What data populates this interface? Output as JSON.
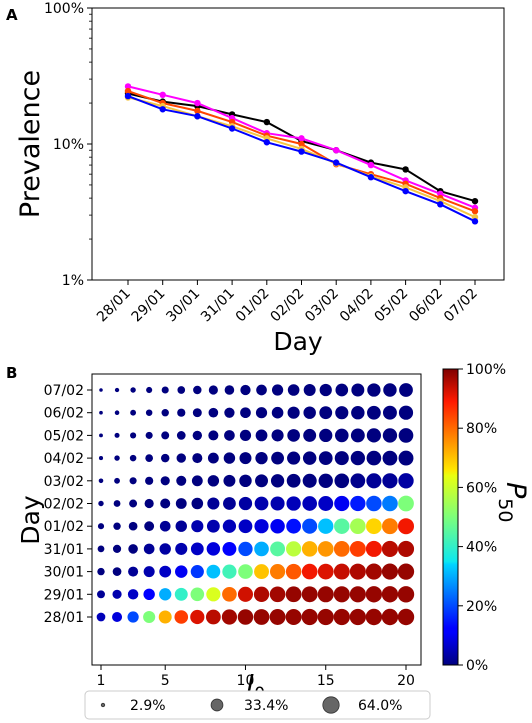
{
  "chart_data": [
    {
      "panel": "A",
      "type": "line",
      "xlabel": "Day",
      "ylabel": "Prevalence",
      "yscale": "log",
      "ylim": [
        1,
        100
      ],
      "yticks": [
        "1%",
        "10%",
        "100%"
      ],
      "categories": [
        "28/01",
        "29/01",
        "30/01",
        "31/01",
        "01/02",
        "02/02",
        "03/02",
        "04/02",
        "05/02",
        "06/02",
        "07/02"
      ],
      "series": [
        {
          "color": "#000000",
          "values": [
            23.5,
            20.5,
            19.0,
            16.5,
            14.5,
            10.5,
            9.0,
            7.3,
            6.5,
            4.5,
            3.8
          ]
        },
        {
          "color": "#ff00ff",
          "values": [
            26.5,
            23.0,
            20.0,
            15.5,
            12.0,
            11.0,
            9.0,
            7.0,
            5.4,
            4.3,
            3.4
          ]
        },
        {
          "color": "#ff4500",
          "values": [
            24.5,
            20.0,
            17.5,
            14.5,
            11.5,
            10.0,
            7.1,
            6.0,
            5.1,
            4.0,
            3.2
          ]
        },
        {
          "color": "#f4c542",
          "values": [
            22.0,
            19.0,
            16.0,
            13.5,
            11.0,
            9.2,
            7.2,
            5.8,
            4.8,
            3.8,
            2.9
          ]
        },
        {
          "color": "#0000ff",
          "values": [
            22.5,
            18.0,
            16.0,
            13.0,
            10.3,
            8.8,
            7.3,
            5.7,
            4.5,
            3.6,
            2.7
          ]
        }
      ]
    },
    {
      "panel": "B",
      "type": "scatter",
      "xlabel": "I",
      "xlabel_subscript": "0",
      "ylabel": "Day",
      "x_ticks": [
        "1",
        "5",
        "10",
        "15",
        "20"
      ],
      "x": [
        1,
        2,
        3,
        4,
        5,
        6,
        7,
        8,
        9,
        10,
        11,
        12,
        13,
        14,
        15,
        16,
        17,
        18,
        19,
        20
      ],
      "days": [
        "28/01",
        "29/01",
        "30/01",
        "31/01",
        "01/02",
        "02/02",
        "03/02",
        "04/02",
        "05/02",
        "06/02",
        "07/02"
      ],
      "colorbar": {
        "label": "P",
        "label_subscript": "50",
        "ticks": [
          "0%",
          "20%",
          "40%",
          "60%",
          "80%",
          "100%"
        ]
      },
      "size_legend": [
        {
          "label": "2.9%",
          "value": 2.9
        },
        {
          "label": "33.4%",
          "value": 33.4
        },
        {
          "label": "64.0%",
          "value": 64.0
        }
      ],
      "p50": [
        [
          0.05,
          0.08,
          0.2,
          0.5,
          0.72,
          0.85,
          0.92,
          0.95,
          0.97,
          0.98,
          0.98,
          0.98,
          0.98,
          0.98,
          0.98,
          0.98,
          0.98,
          0.98,
          0.98,
          0.98
        ],
        [
          0.02,
          0.04,
          0.06,
          0.12,
          0.3,
          0.4,
          0.5,
          0.62,
          0.8,
          0.93,
          0.96,
          0.97,
          0.98,
          0.98,
          0.98,
          0.98,
          0.98,
          0.98,
          0.98,
          0.98
        ],
        [
          0.0,
          0.0,
          0.02,
          0.04,
          0.06,
          0.1,
          0.18,
          0.32,
          0.42,
          0.5,
          0.7,
          0.78,
          0.82,
          0.9,
          0.92,
          0.94,
          0.96,
          0.97,
          0.98,
          0.98
        ],
        [
          0.0,
          0.0,
          0.0,
          0.02,
          0.03,
          0.04,
          0.06,
          0.08,
          0.12,
          0.2,
          0.3,
          0.45,
          0.58,
          0.72,
          0.75,
          0.8,
          0.85,
          0.9,
          0.95,
          0.96
        ],
        [
          0.0,
          0.0,
          0.0,
          0.0,
          0.02,
          0.02,
          0.04,
          0.04,
          0.05,
          0.06,
          0.08,
          0.1,
          0.14,
          0.2,
          0.32,
          0.45,
          0.55,
          0.68,
          0.78,
          0.9
        ],
        [
          0.0,
          0.0,
          0.0,
          0.0,
          0.0,
          0.0,
          0.0,
          0.02,
          0.02,
          0.03,
          0.04,
          0.04,
          0.05,
          0.05,
          0.06,
          0.1,
          0.15,
          0.2,
          0.25,
          0.5
        ],
        [
          0,
          0,
          0,
          0,
          0,
          0,
          0,
          0,
          0,
          0,
          0,
          0,
          0,
          0,
          0,
          0,
          0.01,
          0.02,
          0.02,
          0.03
        ],
        [
          0,
          0,
          0,
          0,
          0,
          0,
          0,
          0,
          0,
          0,
          0,
          0,
          0,
          0,
          0,
          0,
          0,
          0,
          0,
          0
        ],
        [
          0,
          0,
          0,
          0,
          0,
          0,
          0,
          0,
          0,
          0,
          0,
          0,
          0,
          0,
          0,
          0,
          0,
          0,
          0,
          0
        ],
        [
          0,
          0,
          0,
          0,
          0,
          0,
          0,
          0,
          0,
          0,
          0,
          0,
          0,
          0,
          0,
          0,
          0,
          0,
          0,
          0
        ],
        [
          0,
          0,
          0,
          0,
          0,
          0,
          0,
          0,
          0,
          0,
          0,
          0,
          0,
          0,
          0,
          0,
          0,
          0,
          0,
          0
        ]
      ],
      "prevalence": [
        [
          18,
          24,
          30,
          35,
          40,
          44,
          48,
          52,
          55,
          57,
          59,
          60,
          61,
          62,
          62,
          63,
          63,
          64,
          64,
          64
        ],
        [
          15,
          20,
          26,
          31,
          36,
          40,
          44,
          48,
          51,
          54,
          56,
          58,
          59,
          60,
          61,
          62,
          62,
          63,
          63,
          64
        ],
        [
          13,
          18,
          24,
          29,
          33,
          37,
          41,
          45,
          48,
          51,
          53,
          55,
          57,
          58,
          59,
          60,
          61,
          62,
          62,
          63
        ],
        [
          11,
          16,
          22,
          27,
          31,
          35,
          39,
          43,
          46,
          49,
          51,
          53,
          55,
          57,
          58,
          59,
          60,
          61,
          62,
          62
        ],
        [
          9,
          13,
          18,
          23,
          27,
          31,
          35,
          39,
          42,
          45,
          48,
          50,
          52,
          54,
          56,
          57,
          58,
          59,
          60,
          61
        ],
        [
          7,
          11,
          15,
          20,
          24,
          28,
          32,
          35,
          39,
          42,
          45,
          47,
          49,
          51,
          53,
          55,
          56,
          57,
          58,
          59
        ],
        [
          5,
          8,
          12,
          16,
          20,
          24,
          28,
          31,
          34,
          37,
          40,
          42,
          45,
          47,
          49,
          51,
          52,
          54,
          55,
          56
        ],
        [
          4,
          7,
          10,
          14,
          17,
          21,
          24,
          28,
          31,
          34,
          36,
          39,
          41,
          43,
          45,
          47,
          49,
          51,
          52,
          53
        ],
        [
          3.5,
          6,
          9,
          12,
          15,
          18,
          21,
          24,
          27,
          30,
          33,
          35,
          38,
          40,
          42,
          44,
          46,
          48,
          49,
          51
        ],
        [
          3.2,
          5,
          8,
          10,
          13,
          16,
          19,
          22,
          25,
          27,
          30,
          32,
          35,
          37,
          39,
          41,
          43,
          45,
          46,
          48
        ],
        [
          2.9,
          4.5,
          7,
          9,
          12,
          14,
          17,
          20,
          22,
          25,
          27,
          30,
          32,
          34,
          36,
          38,
          40,
          42,
          43,
          45
        ]
      ]
    }
  ],
  "panels": {
    "a_label": "A",
    "b_label": "B"
  }
}
